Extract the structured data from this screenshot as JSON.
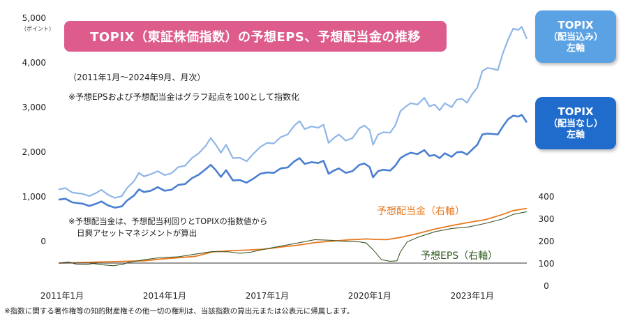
{
  "chart_data": {
    "type": "line",
    "title": "TOPIX（東証株価指数）の予想EPS、予想配当金の推移",
    "period_note": "（2011年1月～2024年9月、月次）",
    "index_note": "※予想EPSおよび予想配当金はグラフ起点を100として指数化",
    "method_note": [
      "※予想配当金は、予想配当利回りとTOPIXの指数値から",
      "日興アセットマネジメントが算出"
    ],
    "footer": "※指数に関する著作権等の知的財産権その他一切の権利は、当該指数の算出元または公表元に帰属します。",
    "left_axis": {
      "unit": "（ポイント）",
      "ylim": [
        -1000,
        5000
      ],
      "ticks": [
        0,
        1000,
        2000,
        3000,
        4000,
        5000
      ],
      "tick_labels": [
        "0",
        "1,000",
        "2,000",
        "3,000",
        "4,000",
        "5,000"
      ]
    },
    "right_axis": {
      "ylim": [
        0,
        400
      ],
      "ticks": [
        0,
        100,
        200,
        300,
        400
      ],
      "tick_labels": [
        "0",
        "100",
        "200",
        "300",
        "400"
      ]
    },
    "x_axis": {
      "start": 2011.0,
      "end": 2024.7,
      "ticks": [
        2011,
        2014,
        2017,
        2020,
        2023
      ],
      "tick_labels": [
        "2011年1月",
        "2014年1月",
        "2017年1月",
        "2020年1月",
        "2023年1月"
      ]
    },
    "series": [
      {
        "name": "TOPIX（配当込み）左軸",
        "legend": [
          "TOPIX",
          "（配当込み）",
          "左軸"
        ],
        "axis": "left",
        "color": "#8fb6e6",
        "points": [
          [
            2011.0,
            1150
          ],
          [
            2011.2,
            1180
          ],
          [
            2011.4,
            1080
          ],
          [
            2011.7,
            1050
          ],
          [
            2011.9,
            1000
          ],
          [
            2012.1,
            1070
          ],
          [
            2012.25,
            1140
          ],
          [
            2012.45,
            1030
          ],
          [
            2012.65,
            960
          ],
          [
            2012.85,
            1000
          ],
          [
            2013.0,
            1180
          ],
          [
            2013.2,
            1330
          ],
          [
            2013.35,
            1520
          ],
          [
            2013.5,
            1440
          ],
          [
            2013.7,
            1490
          ],
          [
            2013.9,
            1560
          ],
          [
            2014.1,
            1470
          ],
          [
            2014.3,
            1510
          ],
          [
            2014.5,
            1650
          ],
          [
            2014.7,
            1680
          ],
          [
            2014.9,
            1850
          ],
          [
            2015.1,
            1960
          ],
          [
            2015.3,
            2120
          ],
          [
            2015.45,
            2300
          ],
          [
            2015.6,
            2150
          ],
          [
            2015.75,
            1970
          ],
          [
            2015.9,
            2150
          ],
          [
            2016.1,
            1850
          ],
          [
            2016.3,
            1860
          ],
          [
            2016.5,
            1780
          ],
          [
            2016.7,
            1950
          ],
          [
            2016.9,
            2100
          ],
          [
            2017.1,
            2190
          ],
          [
            2017.3,
            2180
          ],
          [
            2017.5,
            2320
          ],
          [
            2017.7,
            2380
          ],
          [
            2017.9,
            2580
          ],
          [
            2018.05,
            2680
          ],
          [
            2018.2,
            2500
          ],
          [
            2018.4,
            2560
          ],
          [
            2018.6,
            2530
          ],
          [
            2018.75,
            2600
          ],
          [
            2018.9,
            2190
          ],
          [
            2019.05,
            2300
          ],
          [
            2019.2,
            2380
          ],
          [
            2019.4,
            2240
          ],
          [
            2019.6,
            2300
          ],
          [
            2019.8,
            2520
          ],
          [
            2019.95,
            2580
          ],
          [
            2020.1,
            2480
          ],
          [
            2020.2,
            2150
          ],
          [
            2020.35,
            2380
          ],
          [
            2020.5,
            2430
          ],
          [
            2020.7,
            2420
          ],
          [
            2020.85,
            2580
          ],
          [
            2021.0,
            2900
          ],
          [
            2021.15,
            3000
          ],
          [
            2021.3,
            3080
          ],
          [
            2021.5,
            3050
          ],
          [
            2021.7,
            3200
          ],
          [
            2021.85,
            3010
          ],
          [
            2022.0,
            3050
          ],
          [
            2022.15,
            2920
          ],
          [
            2022.3,
            3080
          ],
          [
            2022.5,
            2990
          ],
          [
            2022.65,
            3160
          ],
          [
            2022.8,
            3180
          ],
          [
            2022.95,
            3090
          ],
          [
            2023.1,
            3280
          ],
          [
            2023.25,
            3430
          ],
          [
            2023.4,
            3800
          ],
          [
            2023.55,
            3870
          ],
          [
            2023.7,
            3850
          ],
          [
            2023.85,
            3820
          ],
          [
            2024.0,
            4200
          ],
          [
            2024.15,
            4500
          ],
          [
            2024.3,
            4750
          ],
          [
            2024.45,
            4720
          ],
          [
            2024.55,
            4790
          ],
          [
            2024.7,
            4520
          ]
        ]
      },
      {
        "name": "TOPIX（配当なし）左軸",
        "legend": [
          "TOPIX",
          "（配当なし）",
          "左軸"
        ],
        "axis": "left",
        "color": "#4a7fd0",
        "points": [
          [
            2011.0,
            920
          ],
          [
            2011.2,
            940
          ],
          [
            2011.4,
            860
          ],
          [
            2011.7,
            830
          ],
          [
            2011.9,
            780
          ],
          [
            2012.1,
            830
          ],
          [
            2012.25,
            880
          ],
          [
            2012.45,
            790
          ],
          [
            2012.65,
            740
          ],
          [
            2012.85,
            770
          ],
          [
            2013.0,
            900
          ],
          [
            2013.2,
            1010
          ],
          [
            2013.35,
            1150
          ],
          [
            2013.5,
            1090
          ],
          [
            2013.7,
            1120
          ],
          [
            2013.9,
            1200
          ],
          [
            2014.1,
            1120
          ],
          [
            2014.3,
            1140
          ],
          [
            2014.5,
            1250
          ],
          [
            2014.7,
            1270
          ],
          [
            2014.9,
            1400
          ],
          [
            2015.1,
            1480
          ],
          [
            2015.3,
            1600
          ],
          [
            2015.45,
            1700
          ],
          [
            2015.6,
            1580
          ],
          [
            2015.75,
            1430
          ],
          [
            2015.9,
            1580
          ],
          [
            2016.1,
            1350
          ],
          [
            2016.3,
            1360
          ],
          [
            2016.5,
            1300
          ],
          [
            2016.7,
            1390
          ],
          [
            2016.9,
            1500
          ],
          [
            2017.1,
            1530
          ],
          [
            2017.3,
            1520
          ],
          [
            2017.5,
            1620
          ],
          [
            2017.7,
            1640
          ],
          [
            2017.9,
            1780
          ],
          [
            2018.05,
            1850
          ],
          [
            2018.2,
            1720
          ],
          [
            2018.4,
            1760
          ],
          [
            2018.6,
            1740
          ],
          [
            2018.75,
            1790
          ],
          [
            2018.9,
            1500
          ],
          [
            2019.05,
            1570
          ],
          [
            2019.2,
            1620
          ],
          [
            2019.4,
            1520
          ],
          [
            2019.6,
            1560
          ],
          [
            2019.8,
            1700
          ],
          [
            2019.95,
            1730
          ],
          [
            2020.1,
            1650
          ],
          [
            2020.2,
            1420
          ],
          [
            2020.35,
            1560
          ],
          [
            2020.5,
            1590
          ],
          [
            2020.7,
            1570
          ],
          [
            2020.85,
            1680
          ],
          [
            2021.0,
            1850
          ],
          [
            2021.15,
            1920
          ],
          [
            2021.3,
            1970
          ],
          [
            2021.5,
            1940
          ],
          [
            2021.7,
            2030
          ],
          [
            2021.85,
            1900
          ],
          [
            2022.0,
            1920
          ],
          [
            2022.15,
            1850
          ],
          [
            2022.3,
            1960
          ],
          [
            2022.5,
            1880
          ],
          [
            2022.65,
            1980
          ],
          [
            2022.8,
            1990
          ],
          [
            2022.95,
            1930
          ],
          [
            2023.1,
            2040
          ],
          [
            2023.25,
            2150
          ],
          [
            2023.4,
            2380
          ],
          [
            2023.55,
            2400
          ],
          [
            2023.7,
            2390
          ],
          [
            2023.85,
            2380
          ],
          [
            2024.0,
            2560
          ],
          [
            2024.15,
            2720
          ],
          [
            2024.3,
            2800
          ],
          [
            2024.45,
            2780
          ],
          [
            2024.55,
            2820
          ],
          [
            2024.7,
            2650
          ]
        ]
      },
      {
        "name": "予想配当金（右軸）",
        "label": "予想配当金（右軸）",
        "axis": "right",
        "color": "#e8781e",
        "points": [
          [
            2011.0,
            100
          ],
          [
            2011.5,
            102
          ],
          [
            2012.0,
            104
          ],
          [
            2012.5,
            106
          ],
          [
            2013.0,
            108
          ],
          [
            2013.5,
            110
          ],
          [
            2014.0,
            118
          ],
          [
            2014.5,
            124
          ],
          [
            2015.0,
            130
          ],
          [
            2015.5,
            150
          ],
          [
            2016.0,
            155
          ],
          [
            2016.5,
            158
          ],
          [
            2017.0,
            162
          ],
          [
            2017.5,
            172
          ],
          [
            2018.0,
            180
          ],
          [
            2018.5,
            192
          ],
          [
            2019.0,
            198
          ],
          [
            2019.5,
            204
          ],
          [
            2020.0,
            208
          ],
          [
            2020.3,
            206
          ],
          [
            2020.6,
            205
          ],
          [
            2021.0,
            215
          ],
          [
            2021.5,
            232
          ],
          [
            2022.0,
            252
          ],
          [
            2022.5,
            268
          ],
          [
            2023.0,
            282
          ],
          [
            2023.5,
            295
          ],
          [
            2024.0,
            318
          ],
          [
            2024.3,
            335
          ],
          [
            2024.7,
            345
          ]
        ]
      },
      {
        "name": "予想EPS（右軸）",
        "label": "予想EPS（右軸）",
        "axis": "right",
        "color": "#3d5a2a",
        "points": [
          [
            2011.0,
            100
          ],
          [
            2011.3,
            105
          ],
          [
            2011.5,
            96
          ],
          [
            2011.8,
            92
          ],
          [
            2012.0,
            98
          ],
          [
            2012.3,
            92
          ],
          [
            2012.6,
            88
          ],
          [
            2012.9,
            95
          ],
          [
            2013.0,
            102
          ],
          [
            2013.5,
            115
          ],
          [
            2014.0,
            125
          ],
          [
            2014.5,
            128
          ],
          [
            2015.0,
            140
          ],
          [
            2015.5,
            152
          ],
          [
            2016.0,
            150
          ],
          [
            2016.3,
            144
          ],
          [
            2016.6,
            148
          ],
          [
            2017.0,
            162
          ],
          [
            2017.5,
            176
          ],
          [
            2018.0,
            190
          ],
          [
            2018.5,
            205
          ],
          [
            2019.0,
            202
          ],
          [
            2019.5,
            196
          ],
          [
            2019.8,
            195
          ],
          [
            2020.0,
            190
          ],
          [
            2020.2,
            160
          ],
          [
            2020.45,
            115
          ],
          [
            2020.7,
            108
          ],
          [
            2020.9,
            110
          ],
          [
            2021.0,
            150
          ],
          [
            2021.2,
            195
          ],
          [
            2021.5,
            215
          ],
          [
            2022.0,
            240
          ],
          [
            2022.5,
            255
          ],
          [
            2023.0,
            262
          ],
          [
            2023.5,
            278
          ],
          [
            2024.0,
            298
          ],
          [
            2024.3,
            318
          ],
          [
            2024.7,
            330
          ]
        ]
      }
    ]
  }
}
